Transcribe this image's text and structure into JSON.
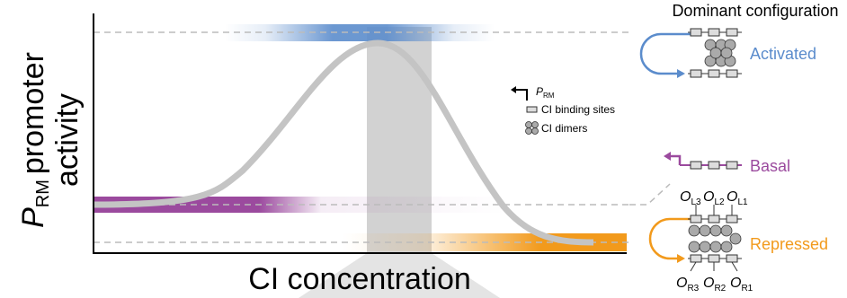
{
  "axes": {
    "x_label": "CI concentration",
    "y_label": {
      "symbol": "P",
      "subscript": "RM",
      "text": "promoter",
      "text2": "activity"
    }
  },
  "legend": {
    "promoter": {
      "symbol": "P",
      "subscript": "RM"
    },
    "binding_sites": "CI binding sites",
    "dimers": "CI dimers"
  },
  "configurations": {
    "title": "Dominant configuration",
    "states": [
      "Activated",
      "Basal",
      "Repressed"
    ]
  },
  "operators": {
    "left": [
      {
        "symbol": "O",
        "subscript": "L3"
      },
      {
        "symbol": "O",
        "subscript": "L2"
      },
      {
        "symbol": "O",
        "subscript": "L1"
      }
    ],
    "right": [
      {
        "symbol": "O",
        "subscript": "R3"
      },
      {
        "symbol": "O",
        "subscript": "R2"
      },
      {
        "symbol": "O",
        "subscript": "R1"
      }
    ]
  }
}
